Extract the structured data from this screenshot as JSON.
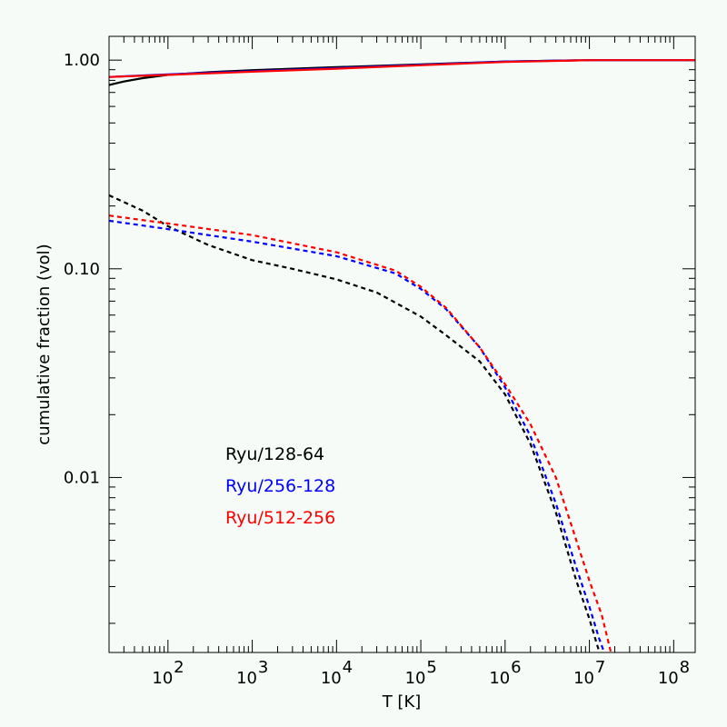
{
  "chart_data": {
    "type": "line",
    "xlabel": "T [K]",
    "ylabel": "cumulative fraction (vol)",
    "xscale": "log",
    "yscale": "log",
    "xlim": [
      20,
      180000000
    ],
    "ylim": [
      0.00145,
      1.3
    ],
    "x_tick_labels": [
      {
        "value": 100,
        "base": "10",
        "exp": "2"
      },
      {
        "value": 1000,
        "base": "10",
        "exp": "3"
      },
      {
        "value": 10000,
        "base": "10",
        "exp": "4"
      },
      {
        "value": 100000,
        "base": "10",
        "exp": "5"
      },
      {
        "value": 1000000,
        "base": "10",
        "exp": "6"
      },
      {
        "value": 10000000,
        "base": "10",
        "exp": "7"
      },
      {
        "value": 100000000,
        "base": "10",
        "exp": "8"
      }
    ],
    "y_tick_labels": [
      {
        "value": 1.0,
        "label": "1.00"
      },
      {
        "value": 0.1,
        "label": "0.10"
      },
      {
        "value": 0.01,
        "label": "0.01"
      }
    ],
    "grid": false,
    "legend_placement": "lower-left",
    "series": [
      {
        "name": "Ryu/128-64",
        "color": "#000000",
        "style": "solid",
        "x": [
          20,
          30,
          50,
          100,
          300,
          1000,
          10000,
          100000,
          1000000,
          10000000,
          180000000
        ],
        "y": [
          0.76,
          0.79,
          0.82,
          0.85,
          0.875,
          0.895,
          0.925,
          0.955,
          0.985,
          1.0,
          1.0
        ]
      },
      {
        "name": "Ryu/128-64",
        "color": "#000000",
        "style": "dashed",
        "x": [
          20,
          50,
          100,
          300,
          1000,
          3000,
          10000,
          30000,
          100000,
          200000,
          500000,
          1000000,
          2000000,
          4000000,
          7000000,
          10000000,
          12500000,
          14000000
        ],
        "y": [
          0.225,
          0.19,
          0.16,
          0.13,
          0.11,
          0.1,
          0.089,
          0.077,
          0.059,
          0.048,
          0.036,
          0.025,
          0.0145,
          0.0068,
          0.0032,
          0.0021,
          0.00155,
          0.00135
        ]
      },
      {
        "name": "Ryu/256-128",
        "color": "#0000ff",
        "style": "solid",
        "x": [
          20,
          100,
          1000,
          10000,
          100000,
          1000000,
          10000000,
          180000000
        ],
        "y": [
          0.83,
          0.855,
          0.885,
          0.915,
          0.95,
          0.985,
          1.0,
          1.0
        ]
      },
      {
        "name": "Ryu/256-128",
        "color": "#0000ff",
        "style": "dashed",
        "x": [
          20,
          100,
          1000,
          10000,
          50000,
          100000,
          200000,
          500000,
          1000000,
          2000000,
          4000000,
          7000000,
          10000000,
          13000000,
          16000000
        ],
        "y": [
          0.17,
          0.155,
          0.135,
          0.115,
          0.095,
          0.08,
          0.064,
          0.042,
          0.027,
          0.0158,
          0.0075,
          0.0037,
          0.0024,
          0.0017,
          0.00135
        ]
      },
      {
        "name": "Ryu/512-256",
        "color": "#ff0000",
        "style": "solid",
        "x": [
          20,
          100,
          1000,
          10000,
          100000,
          1000000,
          10000000,
          180000000
        ],
        "y": [
          0.83,
          0.85,
          0.88,
          0.91,
          0.945,
          0.98,
          1.0,
          1.0
        ]
      },
      {
        "name": "Ryu/512-256",
        "color": "#ff0000",
        "style": "dashed",
        "x": [
          20,
          100,
          1000,
          10000,
          50000,
          100000,
          200000,
          500000,
          1000000,
          2000000,
          4000000,
          7000000,
          10000000,
          14000000,
          18000000
        ],
        "y": [
          0.18,
          0.165,
          0.145,
          0.12,
          0.098,
          0.082,
          0.065,
          0.042,
          0.028,
          0.018,
          0.01,
          0.005,
          0.0032,
          0.0022,
          0.00145
        ]
      }
    ],
    "legend": [
      {
        "label": "Ryu/128-64",
        "color": "#000000"
      },
      {
        "label": "Ryu/256-128",
        "color": "#0000ff"
      },
      {
        "label": "Ryu/512-256",
        "color": "#ff0000"
      }
    ]
  }
}
